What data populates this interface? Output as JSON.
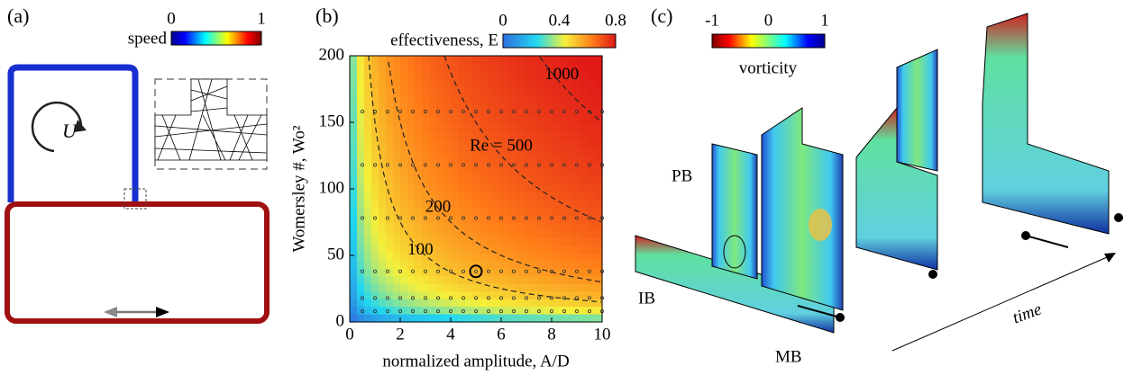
{
  "panel_a": {
    "label": "(a)",
    "colorbar": {
      "title": "speed",
      "lim": [
        0,
        1
      ],
      "ticks": [
        0,
        1
      ]
    },
    "flow_symbol": "U"
  },
  "chart_data": {
    "type": "heatmap",
    "label": "(b)",
    "colorbar": {
      "title": "effectiveness, E",
      "lim": [
        0,
        0.8
      ],
      "ticks": [
        0,
        0.4,
        0.8
      ]
    },
    "xlabel": "normalized amplitude, A/D",
    "ylabel": "Womersley #, Wo²",
    "xlim": [
      0,
      10
    ],
    "xticks": [
      0,
      2,
      4,
      6,
      8,
      10
    ],
    "ylim": [
      0,
      200
    ],
    "yticks": [
      0,
      50,
      100,
      150,
      200
    ],
    "contours": [
      {
        "value": 100,
        "label": "100"
      },
      {
        "value": 200,
        "label": "200"
      },
      {
        "value": 500,
        "label": "Re = 500"
      },
      {
        "value": 1000,
        "label": "1000"
      }
    ],
    "sample_x": [
      0.5,
      1,
      1.5,
      2,
      2.5,
      3,
      3.5,
      4,
      4.5,
      5,
      5.5,
      6,
      6.5,
      7,
      7.5,
      8,
      8.5,
      9,
      9.5,
      10
    ],
    "sample_y": [
      8,
      18,
      38,
      78,
      118,
      158
    ],
    "highlight": {
      "x": 5,
      "y": 38
    }
  },
  "panel_c": {
    "label": "(c)",
    "colorbar": {
      "title": "vorticity",
      "lim": [
        -1,
        1
      ],
      "ticks": [
        -1,
        0,
        1
      ]
    },
    "labels": {
      "pb": "PB",
      "ib": "IB",
      "mb": "MB",
      "time": "time"
    }
  }
}
